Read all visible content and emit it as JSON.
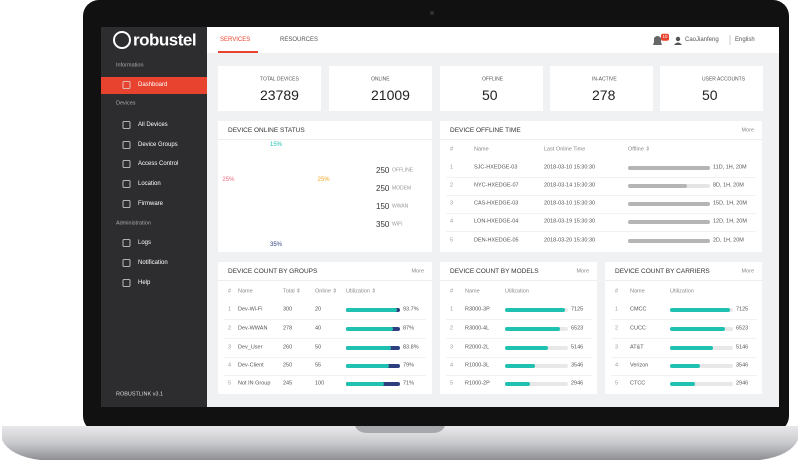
{
  "sidebar": {
    "brand": "robustel",
    "sections": [
      {
        "heading": "Information",
        "items": [
          "Dashboard"
        ]
      },
      {
        "heading": "Devices",
        "items": [
          "All Devices",
          "Device Groups",
          "Access Control",
          "Location",
          "Firmware"
        ]
      },
      {
        "heading": "Administration",
        "items": [
          "Logs",
          "Notification",
          "Help"
        ]
      }
    ],
    "footer": "ROBUSTLINK v3.1"
  },
  "topbar": {
    "menu": [
      "SERVICES",
      "RESOURCES"
    ],
    "badge": "10",
    "user": "CaoJianfeng",
    "language": "English"
  },
  "stats": [
    {
      "label": "TOTAL DEVICES",
      "value": 23789,
      "color": "#2e3f7f"
    },
    {
      "label": "ONLINE",
      "value": 21009,
      "color": "#1fc1b0"
    },
    {
      "label": "OFFLINE",
      "value": 50,
      "color": "#b5b5b5"
    },
    {
      "label": "IN-ACTIVE",
      "value": 278,
      "color": "#f5a623"
    },
    {
      "label": "USER ACCOUNTS",
      "value": 50,
      "color": "#29a3f0"
    }
  ],
  "online_status": {
    "title": "DEVICE ONLINE STATUS",
    "segments": [
      {
        "name": "OFFLINE",
        "value": 250,
        "percent": "25%",
        "color": "#f5a623"
      },
      {
        "name": "MODEM",
        "value": 250,
        "percent": "25%",
        "color": "#ef6b7c"
      },
      {
        "name": "WWAN",
        "value": 150,
        "percent": "15%",
        "color": "#1fc1b0"
      },
      {
        "name": "WIFI",
        "value": 350,
        "percent": "35%",
        "color": "#2e3f7f"
      }
    ]
  },
  "offline_time": {
    "title": "DEVICE OFFLINE TIME",
    "more": "More",
    "columns": [
      "#",
      "Name",
      "Last Online Time",
      "Offline ⇕"
    ],
    "rows": [
      {
        "index": 1,
        "name": "SJC-HXEDGE-03",
        "last_online": "2018-03-10 15:30:30",
        "offline": "11D, 1H, 20M",
        "progress": 100
      },
      {
        "index": 2,
        "name": "NYC-HXEDGE-07",
        "last_online": "2018-03-14 15:30:30",
        "offline": "8D, 1H, 20M",
        "progress": 72
      },
      {
        "index": 3,
        "name": "CAS-HXEDGE-03",
        "last_online": "2018-03-10 15:30:30",
        "offline": "15D, 1H, 20M",
        "progress": 100
      },
      {
        "index": 4,
        "name": "LON-HXEDGE-04",
        "last_online": "2018-03-19 15:30:30",
        "offline": "12D, 1H, 20M",
        "progress": 100
      },
      {
        "index": 5,
        "name": "DEN-HXEDGE-05",
        "last_online": "2018-03-20 15:30:30",
        "offline": "2D, 1H, 20M",
        "progress": 100
      }
    ]
  },
  "groups": {
    "title": "DEVICE COUNT BY GROUPS",
    "more": "More",
    "columns": [
      "#",
      "Name",
      "Total ⇕",
      "Online ⇕",
      "Utilization ⇕"
    ],
    "rows": [
      {
        "index": 1,
        "name": "Dev-Wi-Fi",
        "total": 300,
        "online": 20,
        "utilization": 93.7,
        "utilization_label": "93.7%"
      },
      {
        "index": 2,
        "name": "Dev-WWAN",
        "total": 278,
        "online": 40,
        "utilization": 87,
        "utilization_label": "87%"
      },
      {
        "index": 3,
        "name": "Dev_User",
        "total": 260,
        "online": 50,
        "utilization": 83.8,
        "utilization_label": "83.8%"
      },
      {
        "index": 4,
        "name": "Dev-Client",
        "total": 250,
        "online": 55,
        "utilization": 79,
        "utilization_label": "79%"
      },
      {
        "index": 5,
        "name": "Not IN Group",
        "total": 245,
        "online": 100,
        "utilization": 71,
        "utilization_label": "71%"
      }
    ]
  },
  "models": {
    "title": "DEVICE COUNT BY MODELS",
    "more": "More",
    "columns": [
      "#",
      "Name",
      "Utilization"
    ],
    "rows": [
      {
        "index": 1,
        "name": "R3000-3P",
        "value": 7125
      },
      {
        "index": 2,
        "name": "R3000-4L",
        "value": 6523
      },
      {
        "index": 3,
        "name": "R2000-2L",
        "value": 5146
      },
      {
        "index": 4,
        "name": "R1000-3L",
        "value": 3546
      },
      {
        "index": 5,
        "name": "R1000-2P",
        "value": 2946
      }
    ]
  },
  "carriers": {
    "title": "DEVICE COUNT BY CARRIERS",
    "more": "More",
    "columns": [
      "#",
      "Name",
      "Utilization"
    ],
    "rows": [
      {
        "index": 1,
        "name": "CMCC",
        "value": 7125
      },
      {
        "index": 2,
        "name": "CUCC",
        "value": 6523
      },
      {
        "index": 3,
        "name": "AT&T",
        "value": 5146
      },
      {
        "index": 4,
        "name": "Verizon",
        "value": 3546
      },
      {
        "index": 5,
        "name": "CTCC",
        "value": 2946
      }
    ]
  }
}
